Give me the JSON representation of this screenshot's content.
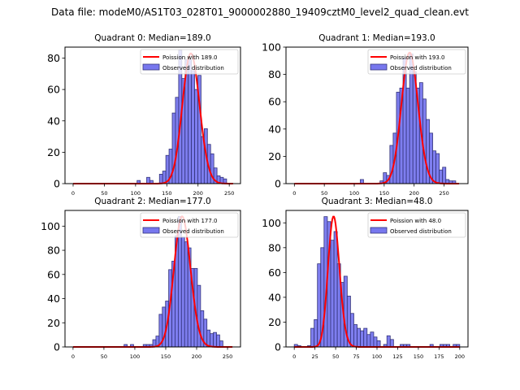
{
  "suptitle": "Data file: modeM0/AS1T03_028T01_9000002880_19409cztM0_level2_quad_clean.evt",
  "colors": {
    "hist_fill": "#7777ee",
    "hist_edge": "#33337a",
    "fit_line": "#ff0000"
  },
  "chart_data": [
    {
      "type": "bar",
      "title": "Quadrant 0: Median=189.0",
      "median": 189.0,
      "legend": [
        "Poission with 189.0",
        "Observed distribution"
      ],
      "legend_position": "top-right",
      "xlim": [
        -13,
        268
      ],
      "ylim": [
        0,
        87
      ],
      "xticks": [
        0,
        50,
        100,
        150,
        200,
        250
      ],
      "yticks": [
        0,
        20,
        40,
        60,
        80
      ],
      "bin_start": 0,
      "bin_width": 5.12,
      "values": [
        0,
        0,
        0,
        0,
        0,
        0,
        0,
        0,
        0,
        0,
        0,
        0,
        0,
        0,
        0,
        0,
        0,
        0,
        0,
        0,
        2,
        0,
        0,
        4,
        2,
        0,
        0,
        6,
        8,
        18,
        22,
        45,
        55,
        85,
        67,
        79,
        79,
        72,
        60,
        69,
        30,
        35,
        25,
        19,
        10,
        5,
        4,
        3,
        0,
        0
      ],
      "poisson_mean": 189.0,
      "poisson_peak": 83
    },
    {
      "type": "bar",
      "title": "Quadrant 1: Median=193.0",
      "median": 193.0,
      "legend": [
        "Poission with 193.0",
        "Observed distribution"
      ],
      "legend_position": "top-right",
      "xlim": [
        -14,
        290
      ],
      "ylim": [
        0,
        100
      ],
      "xticks": [
        0,
        50,
        100,
        150,
        200,
        250
      ],
      "yticks": [
        0,
        20,
        40,
        60,
        80,
        100
      ],
      "bin_start": 0,
      "bin_width": 5.5,
      "values": [
        0,
        0,
        0,
        0,
        0,
        0,
        0,
        0,
        0,
        0,
        0,
        0,
        0,
        0,
        0,
        0,
        0,
        0,
        0,
        0,
        3,
        0,
        0,
        0,
        0,
        0,
        2,
        8,
        6,
        28,
        37,
        67,
        70,
        92,
        70,
        95,
        82,
        70,
        74,
        62,
        47,
        37,
        24,
        22,
        10,
        12,
        3,
        2,
        2,
        0
      ],
      "poisson_mean": 193.0,
      "poisson_peak": 96
    },
    {
      "type": "bar",
      "title": "Quadrant 2: Median=177.0",
      "median": 177.0,
      "legend": [
        "Poission with 177.0",
        "Observed distribution"
      ],
      "legend_position": "top-right",
      "xlim": [
        -13,
        271
      ],
      "ylim": [
        0,
        113
      ],
      "xticks": [
        0,
        50,
        100,
        150,
        200,
        250
      ],
      "yticks": [
        0,
        20,
        40,
        60,
        80,
        100
      ],
      "bin_start": 0,
      "bin_width": 5.16,
      "values": [
        0,
        0,
        0,
        0,
        0,
        0,
        0,
        0,
        0,
        0,
        0,
        0,
        0,
        0,
        0,
        0,
        2,
        0,
        2,
        0,
        0,
        0,
        2,
        2,
        2,
        6,
        9,
        27,
        33,
        38,
        64,
        71,
        92,
        108,
        91,
        87,
        82,
        65,
        65,
        51,
        30,
        23,
        14,
        11,
        12,
        10,
        5,
        0,
        0,
        0
      ],
      "poisson_mean": 177.0,
      "poisson_peak": 108
    },
    {
      "type": "bar",
      "title": "Quadrant 3: Median=48.0",
      "median": 48.0,
      "legend": [
        "Poission with 48.0",
        "Observed distribution"
      ],
      "legend_position": "top-right",
      "xlim": [
        -10,
        210
      ],
      "ylim": [
        0,
        110
      ],
      "xticks": [
        0,
        25,
        50,
        75,
        100,
        125,
        150,
        175,
        200
      ],
      "yticks": [
        0,
        20,
        40,
        60,
        80,
        100
      ],
      "bin_start": 0,
      "bin_width": 4.0,
      "values": [
        2,
        1,
        0,
        0,
        1,
        15,
        22,
        67,
        80,
        105,
        101,
        86,
        93,
        67,
        52,
        57,
        41,
        27,
        18,
        15,
        13,
        15,
        10,
        12,
        8,
        5,
        0,
        2,
        9,
        6,
        0,
        0,
        2,
        2,
        2,
        0,
        0,
        0,
        0,
        0,
        0,
        2,
        0,
        0,
        2,
        2,
        2,
        0,
        2,
        2
      ],
      "poisson_mean": 48.0,
      "poisson_peak": 105
    }
  ]
}
